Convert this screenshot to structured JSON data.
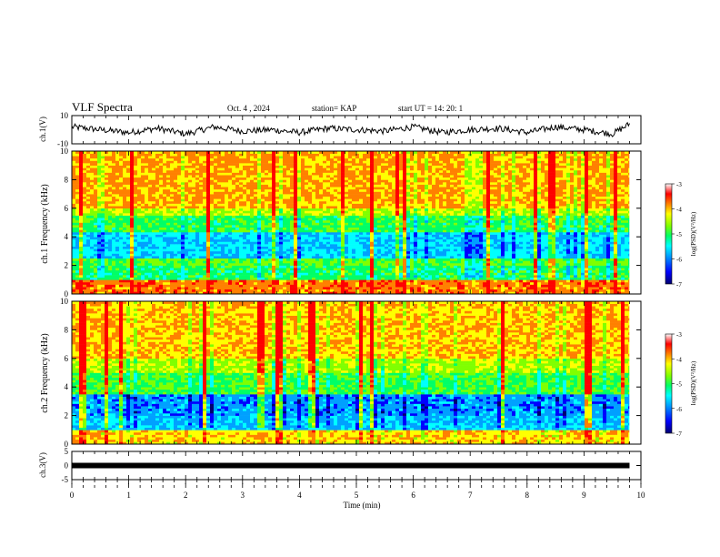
{
  "header": {
    "title": "VLF Spectra",
    "date": "Oct. 4 , 2024",
    "station": "station= KAP",
    "start": "start UT = 14: 20: 1"
  },
  "colors": {
    "map": [
      "#000070",
      "#0000ff",
      "#00a0ff",
      "#00ffff",
      "#00ff66",
      "#80ff00",
      "#ffff00",
      "#ff8000",
      "#ff0000",
      "#ffffff"
    ],
    "waveform": "#000000",
    "frame": "#000000"
  },
  "chart_data": [
    {
      "type": "line",
      "panel": "ch1-waveform",
      "ylabel": "ch.1(V)",
      "ylim": [
        -10,
        10
      ],
      "yticks": [
        "10",
        "-10"
      ],
      "x": [
        0,
        0.5,
        1,
        1.5,
        2,
        2.5,
        3,
        3.5,
        4,
        4.5,
        5,
        5.5,
        6,
        6.5,
        7,
        7.5,
        8,
        8.5,
        9,
        9.5,
        9.8
      ],
      "values": [
        2,
        0,
        -2,
        1,
        -3,
        2,
        -1,
        0,
        -2,
        1,
        0,
        -1,
        2,
        -2,
        0,
        1,
        -2,
        2,
        0,
        -3,
        4
      ]
    },
    {
      "type": "heatmap",
      "panel": "ch1-spectrogram",
      "ylabel": "ch.1 Frequency (kHz)",
      "ylim": [
        0,
        10
      ],
      "yticks": [
        "10",
        "8",
        "6",
        "4",
        "2",
        "0"
      ],
      "colorbar": {
        "label": "log(PSD)(V²/Hz)",
        "ticks": [
          "-3",
          "-4",
          "-5",
          "-6",
          "-7"
        ],
        "range": [
          -7,
          -3
        ]
      },
      "bands": [
        {
          "from": 6.0,
          "to": 10.0,
          "level": -3.8
        },
        {
          "from": 5.5,
          "to": 6.0,
          "level": -4.3
        },
        {
          "from": 4.3,
          "to": 5.5,
          "level": -4.9
        },
        {
          "from": 2.5,
          "to": 4.3,
          "level": -5.6
        },
        {
          "from": 2.0,
          "to": 2.5,
          "level": -4.7
        },
        {
          "from": 1.0,
          "to": 2.0,
          "level": -5.0
        },
        {
          "from": 0.0,
          "to": 1.0,
          "level": -3.6
        }
      ]
    },
    {
      "type": "heatmap",
      "panel": "ch2-spectrogram",
      "ylabel": "ch.2 Frequency (kHz)",
      "ylim": [
        0,
        10
      ],
      "yticks": [
        "10",
        "8",
        "6",
        "4",
        "2",
        "0"
      ],
      "colorbar": {
        "label": "log(PSD)(V²/Hz)",
        "ticks": [
          "-3",
          "-4",
          "-5",
          "-6",
          "-7"
        ],
        "range": [
          -7,
          -3
        ]
      },
      "bands": [
        {
          "from": 6.0,
          "to": 10.0,
          "level": -3.9
        },
        {
          "from": 5.0,
          "to": 6.0,
          "level": -4.4
        },
        {
          "from": 3.5,
          "to": 5.0,
          "level": -4.8
        },
        {
          "from": 2.0,
          "to": 3.5,
          "level": -5.9
        },
        {
          "from": 1.0,
          "to": 2.0,
          "level": -5.7
        },
        {
          "from": 0.0,
          "to": 1.0,
          "level": -4.0
        }
      ]
    },
    {
      "type": "line",
      "panel": "ch3-waveform",
      "ylabel": "ch.3(V)",
      "ylim": [
        -5,
        5
      ],
      "yticks": [
        "5",
        "0",
        "-5"
      ],
      "x": [
        0,
        9.8
      ],
      "values": [
        0,
        0
      ]
    }
  ],
  "xaxis": {
    "label": "Time (min)",
    "range": [
      0,
      10
    ],
    "ticks": [
      "0",
      "1",
      "2",
      "3",
      "4",
      "5",
      "6",
      "7",
      "8",
      "9",
      "10"
    ]
  }
}
